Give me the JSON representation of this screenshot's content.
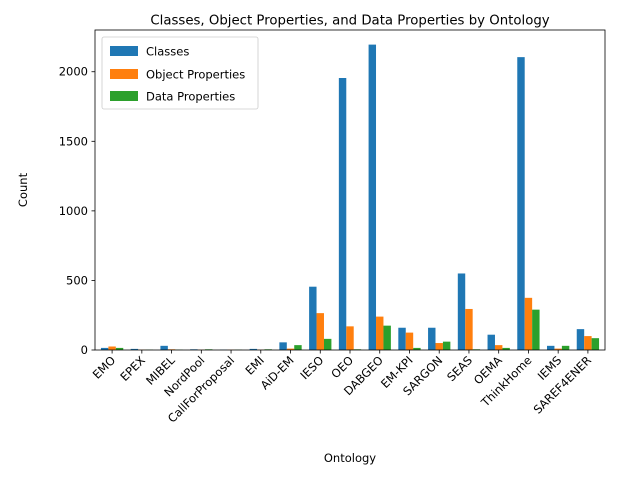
{
  "chart_data": {
    "type": "bar",
    "title": "Classes, Object Properties, and Data Properties by Ontology",
    "xlabel": "Ontology",
    "ylabel": "Count",
    "ylim": [
      0,
      2300
    ],
    "yticks": [
      0,
      500,
      1000,
      1500,
      2000
    ],
    "ytick_labels": [
      "0",
      "500",
      "1000",
      "1500",
      "2000"
    ],
    "legend_position": "top-left",
    "categories": [
      "EMO",
      "EPEX",
      "MIBEL",
      "NordPool",
      "CallForProposal",
      "EMI",
      "AiD-EM",
      "IESO",
      "OEO",
      "DABGEO",
      "EM-KPI",
      "SARGON",
      "SEAS",
      "OEMA",
      "ThinkHome",
      "IEMS",
      "SAREF4ENER"
    ],
    "series": [
      {
        "name": "Classes",
        "color": "#1f77b4",
        "values": [
          15,
          8,
          30,
          5,
          2,
          8,
          55,
          455,
          1955,
          2195,
          160,
          160,
          550,
          110,
          2105,
          30,
          150
        ]
      },
      {
        "name": "Object Properties",
        "color": "#ff7f0e",
        "values": [
          25,
          2,
          5,
          2,
          2,
          2,
          10,
          265,
          170,
          240,
          125,
          50,
          295,
          35,
          375,
          10,
          100
        ]
      },
      {
        "name": "Data Properties",
        "color": "#2ca02c",
        "values": [
          15,
          2,
          2,
          5,
          2,
          5,
          35,
          80,
          5,
          175,
          15,
          60,
          5,
          15,
          290,
          30,
          85
        ]
      }
    ]
  }
}
